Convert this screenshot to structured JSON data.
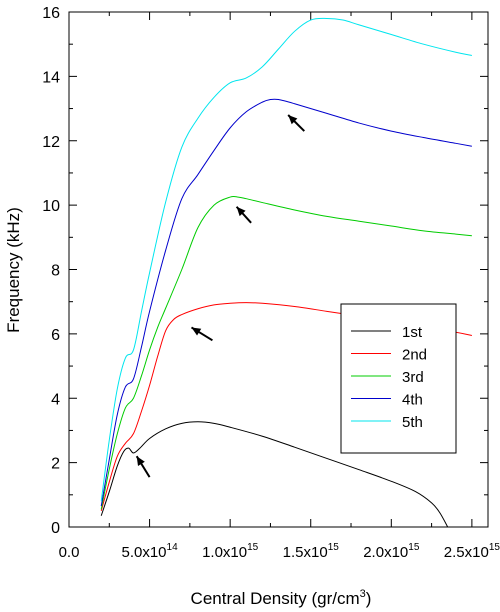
{
  "chart_data": {
    "type": "line",
    "xlabel_main": "Central Density (gr/cm",
    "xlabel_sup": "3",
    "xlabel_close": ")",
    "ylabel": "Frequency (kHz)",
    "xlim": [
      0,
      2600000000000000.0
    ],
    "ylim": [
      0,
      16
    ],
    "grid": false,
    "legend_position": "lower-right",
    "x_ticks": [
      {
        "value": 0,
        "base": "0.0",
        "exp": ""
      },
      {
        "value": 500000000000000.0,
        "base": "5.0x10",
        "exp": "14"
      },
      {
        "value": 1000000000000000.0,
        "base": "1.0x10",
        "exp": "15"
      },
      {
        "value": 1500000000000000.0,
        "base": "1.5x10",
        "exp": "15"
      },
      {
        "value": 2000000000000000.0,
        "base": "2.0x10",
        "exp": "15"
      },
      {
        "value": 2500000000000000.0,
        "base": "2.5x10",
        "exp": "15"
      }
    ],
    "y_ticks": [
      0,
      2,
      4,
      6,
      8,
      10,
      12,
      14,
      16
    ],
    "series": [
      {
        "name": "1st",
        "color": "#000000",
        "x": [
          200000000000000.0,
          250000000000000.0,
          300000000000000.0,
          340000000000000.0,
          370000000000000.0,
          400000000000000.0,
          440000000000000.0,
          500000000000000.0,
          600000000000000.0,
          700000000000000.0,
          800000000000000.0,
          900000000000000.0,
          1000000000000000.0,
          1200000000000000.0,
          1400000000000000.0,
          1600000000000000.0,
          1800000000000000.0,
          2000000000000000.0,
          2150000000000000.0,
          2250000000000000.0,
          2300000000000000.0,
          2350000000000000.0
        ],
        "y": [
          0.35,
          1.1,
          1.9,
          2.35,
          2.45,
          2.3,
          2.45,
          2.75,
          3.05,
          3.22,
          3.27,
          3.22,
          3.1,
          2.82,
          2.48,
          2.13,
          1.78,
          1.42,
          1.1,
          0.75,
          0.45,
          0
        ]
      },
      {
        "name": "2nd",
        "color": "#ff0000",
        "x": [
          200000000000000.0,
          250000000000000.0,
          300000000000000.0,
          350000000000000.0,
          400000000000000.0,
          450000000000000.0,
          500000000000000.0,
          550000000000000.0,
          600000000000000.0,
          650000000000000.0,
          700000000000000.0,
          800000000000000.0,
          900000000000000.0,
          1000000000000000.0,
          1100000000000000.0,
          1200000000000000.0,
          1400000000000000.0,
          1600000000000000.0,
          1800000000000000.0,
          2000000000000000.0,
          2200000000000000.0,
          2400000000000000.0,
          2500000000000000.0
        ],
        "y": [
          0.5,
          1.4,
          2.2,
          2.6,
          2.9,
          3.6,
          4.4,
          5.3,
          6.1,
          6.45,
          6.6,
          6.78,
          6.9,
          6.95,
          6.97,
          6.95,
          6.85,
          6.7,
          6.55,
          6.4,
          6.22,
          6.05,
          5.95
        ]
      },
      {
        "name": "3rd",
        "color": "#00cc00",
        "x": [
          200000000000000.0,
          250000000000000.0,
          300000000000000.0,
          350000000000000.0,
          400000000000000.0,
          450000000000000.0,
          500000000000000.0,
          550000000000000.0,
          600000000000000.0,
          700000000000000.0,
          800000000000000.0,
          900000000000000.0,
          1000000000000000.0,
          1050000000000000.0,
          1100000000000000.0,
          1200000000000000.0,
          1400000000000000.0,
          1600000000000000.0,
          1800000000000000.0,
          2000000000000000.0,
          2200000000000000.0,
          2400000000000000.0,
          2500000000000000.0
        ],
        "y": [
          0.55,
          1.8,
          2.9,
          3.7,
          4.0,
          4.7,
          5.5,
          6.2,
          6.8,
          8.0,
          9.3,
          10.0,
          10.25,
          10.25,
          10.2,
          10.08,
          9.85,
          9.65,
          9.5,
          9.35,
          9.2,
          9.1,
          9.05
        ]
      },
      {
        "name": "4th",
        "color": "#0000cc",
        "x": [
          200000000000000.0,
          250000000000000.0,
          300000000000000.0,
          350000000000000.0,
          400000000000000.0,
          450000000000000.0,
          500000000000000.0,
          600000000000000.0,
          700000000000000.0,
          800000000000000.0,
          900000000000000.0,
          1000000000000000.0,
          1100000000000000.0,
          1200000000000000.0,
          1250000000000000.0,
          1300000000000000.0,
          1400000000000000.0,
          1600000000000000.0,
          1800000000000000.0,
          2000000000000000.0,
          2200000000000000.0,
          2400000000000000.0,
          2500000000000000.0
        ],
        "y": [
          0.65,
          2.1,
          3.5,
          4.35,
          4.6,
          5.6,
          6.7,
          8.6,
          10.2,
          10.95,
          11.7,
          12.4,
          12.9,
          13.2,
          13.28,
          13.28,
          13.15,
          12.85,
          12.55,
          12.3,
          12.1,
          11.92,
          11.83
        ]
      },
      {
        "name": "5th",
        "color": "#00e5ee",
        "x": [
          200000000000000.0,
          250000000000000.0,
          300000000000000.0,
          350000000000000.0,
          400000000000000.0,
          450000000000000.0,
          500000000000000.0,
          600000000000000.0,
          700000000000000.0,
          800000000000000.0,
          900000000000000.0,
          1000000000000000.0,
          1100000000000000.0,
          1200000000000000.0,
          1300000000000000.0,
          1400000000000000.0,
          1500000000000000.0,
          1600000000000000.0,
          1700000000000000.0,
          1800000000000000.0,
          2000000000000000.0,
          2200000000000000.0,
          2400000000000000.0,
          2500000000000000.0
        ],
        "y": [
          0.8,
          2.7,
          4.3,
          5.25,
          5.5,
          6.7,
          7.9,
          10.1,
          11.8,
          12.7,
          13.35,
          13.8,
          13.95,
          14.3,
          14.85,
          15.4,
          15.75,
          15.8,
          15.75,
          15.6,
          15.3,
          15.0,
          14.75,
          14.65
        ]
      }
    ],
    "arrows": [
      {
        "tip": [
          420000000000000.0,
          2.2
        ],
        "tail": [
          500000000000000.0,
          1.55
        ]
      },
      {
        "tip": [
          760000000000000.0,
          6.2
        ],
        "tail": [
          890000000000000.0,
          5.8
        ]
      },
      {
        "tip": [
          1040000000000000.0,
          9.95
        ],
        "tail": [
          1130000000000000.0,
          9.45
        ]
      },
      {
        "tip": [
          1360000000000000.0,
          12.8
        ],
        "tail": [
          1460000000000000.0,
          12.3
        ]
      }
    ]
  }
}
